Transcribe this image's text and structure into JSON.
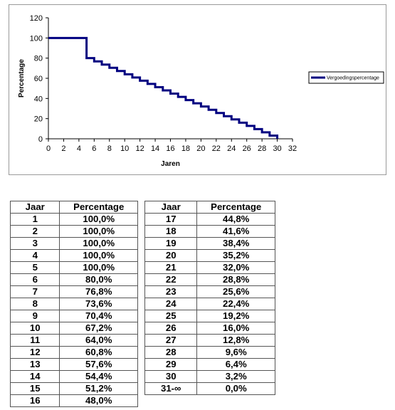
{
  "chart_data": {
    "type": "line",
    "xlabel": "Jaren",
    "ylabel": "Percentage",
    "xlim": [
      0,
      32
    ],
    "ylim": [
      0,
      120
    ],
    "x_ticks": [
      0,
      2,
      4,
      6,
      8,
      10,
      12,
      14,
      16,
      18,
      20,
      22,
      24,
      26,
      28,
      30,
      32
    ],
    "y_ticks": [
      0,
      20,
      40,
      60,
      80,
      100,
      120
    ],
    "grid": false,
    "legend_position": "right",
    "line_color": "#000080",
    "step": true,
    "series": [
      {
        "name": "Vergoedingspercentage",
        "x": [
          0,
          1,
          2,
          3,
          4,
          5,
          6,
          7,
          8,
          9,
          10,
          11,
          12,
          13,
          14,
          15,
          16,
          17,
          18,
          19,
          20,
          21,
          22,
          23,
          24,
          25,
          26,
          27,
          28,
          29,
          30
        ],
        "y": [
          100,
          100,
          100,
          100,
          100,
          80,
          76.8,
          73.6,
          70.4,
          67.2,
          64,
          60.8,
          57.6,
          54.4,
          51.2,
          48,
          44.8,
          41.6,
          38.4,
          35.2,
          32,
          28.8,
          25.6,
          22.4,
          19.2,
          16,
          12.8,
          9.6,
          6.4,
          3.2,
          0
        ]
      }
    ]
  },
  "tables": {
    "header": {
      "year": "Jaar",
      "percentage": "Percentage"
    },
    "left": [
      [
        "1",
        "100,0%"
      ],
      [
        "2",
        "100,0%"
      ],
      [
        "3",
        "100,0%"
      ],
      [
        "4",
        "100,0%"
      ],
      [
        "5",
        "100,0%"
      ],
      [
        "6",
        "80,0%"
      ],
      [
        "7",
        "76,8%"
      ],
      [
        "8",
        "73,6%"
      ],
      [
        "9",
        "70,4%"
      ],
      [
        "10",
        "67,2%"
      ],
      [
        "11",
        "64,0%"
      ],
      [
        "12",
        "60,8%"
      ],
      [
        "13",
        "57,6%"
      ],
      [
        "14",
        "54,4%"
      ],
      [
        "15",
        "51,2%"
      ],
      [
        "16",
        "48,0%"
      ]
    ],
    "right": [
      [
        "17",
        "44,8%"
      ],
      [
        "18",
        "41,6%"
      ],
      [
        "19",
        "38,4%"
      ],
      [
        "20",
        "35,2%"
      ],
      [
        "21",
        "32,0%"
      ],
      [
        "22",
        "28,8%"
      ],
      [
        "23",
        "25,6%"
      ],
      [
        "24",
        "22,4%"
      ],
      [
        "25",
        "19,2%"
      ],
      [
        "26",
        "16,0%"
      ],
      [
        "27",
        "12,8%"
      ],
      [
        "28",
        "9,6%"
      ],
      [
        "29",
        "6,4%"
      ],
      [
        "30",
        "3,2%"
      ],
      [
        "31-∞",
        "0,0%"
      ]
    ]
  }
}
